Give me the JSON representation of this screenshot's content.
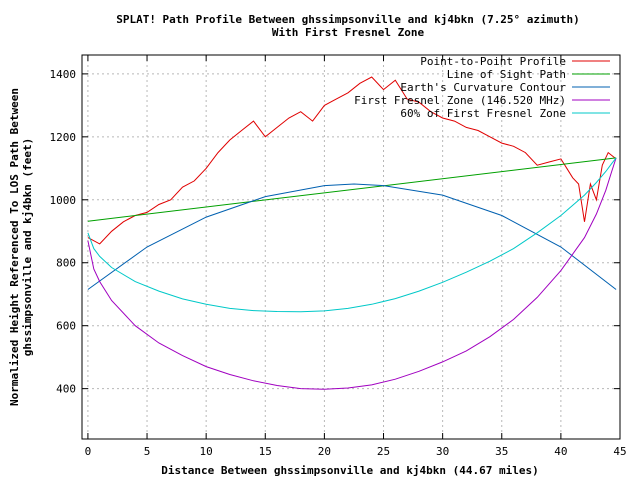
{
  "chart_data": {
    "type": "line",
    "title": "SPLAT! Path Profile Between ghssimpsonville and kj4bkn (7.25° azimuth)",
    "subtitle": "With First Fresnel Zone",
    "xlabel": "Distance Between ghssimpsonville and kj4bkn (44.67 miles)",
    "ylabel_line1": "Normalized Height Referenced To LOS Path Between",
    "ylabel_line2": "ghssimpsonville and kj4bkn (feet)",
    "xlim": [
      -0.5,
      45
    ],
    "ylim": [
      240,
      1460
    ],
    "xticks": [
      0,
      5,
      10,
      15,
      20,
      25,
      30,
      35,
      40,
      45
    ],
    "yticks": [
      400,
      600,
      800,
      1000,
      1200,
      1400
    ],
    "grid": true,
    "legend_position": "top-right",
    "series": [
      {
        "name": "Point-to-Point Profile",
        "color": "#e00000",
        "x": [
          0,
          1,
          2,
          3,
          4,
          5,
          6,
          7,
          8,
          9,
          10,
          11,
          12,
          13,
          14,
          15,
          16,
          17,
          18,
          19,
          20,
          21,
          22,
          23,
          24,
          25,
          26,
          27,
          28,
          29,
          30,
          31,
          32,
          33,
          34,
          35,
          36,
          37,
          38,
          39,
          40,
          40.5,
          41,
          41.5,
          42,
          42.5,
          43,
          43.5,
          44,
          44.67
        ],
        "y": [
          880,
          860,
          900,
          930,
          950,
          960,
          985,
          1000,
          1040,
          1060,
          1100,
          1150,
          1190,
          1220,
          1250,
          1200,
          1230,
          1260,
          1280,
          1250,
          1300,
          1320,
          1340,
          1370,
          1390,
          1350,
          1380,
          1320,
          1310,
          1280,
          1260,
          1250,
          1230,
          1220,
          1200,
          1180,
          1170,
          1150,
          1110,
          1120,
          1130,
          1100,
          1070,
          1050,
          930,
          1050,
          1000,
          1110,
          1150,
          1130
        ]
      },
      {
        "name": "Line of Sight Path",
        "color": "#00a000",
        "x": [
          0,
          44.67
        ],
        "y": [
          932,
          1133
        ]
      },
      {
        "name": "Earth's Curvature Contour",
        "color": "#0060b0",
        "x": [
          0,
          5,
          10,
          15,
          20,
          22.5,
          25,
          30,
          35,
          40,
          44.67
        ],
        "y": [
          715,
          850,
          945,
          1010,
          1045,
          1050,
          1045,
          1015,
          950,
          850,
          715
        ]
      },
      {
        "name": "First Fresnel Zone (146.520 MHz)",
        "color": "#a000c0",
        "x": [
          0,
          0.5,
          1,
          2,
          4,
          6,
          8,
          10,
          12,
          14,
          16,
          18,
          20,
          22,
          24,
          26,
          28,
          30,
          32,
          34,
          36,
          38,
          40,
          42,
          43,
          43.8,
          44.3,
          44.67
        ],
        "y": [
          870,
          780,
          740,
          680,
          600,
          545,
          505,
          470,
          445,
          425,
          410,
          400,
          398,
          402,
          412,
          430,
          455,
          485,
          520,
          565,
          620,
          690,
          775,
          880,
          955,
          1030,
          1090,
          1133
        ]
      },
      {
        "name": "60% of First Fresnel Zone",
        "color": "#00c8c8",
        "x": [
          0,
          0.5,
          1,
          2,
          4,
          6,
          8,
          10,
          12,
          14,
          16,
          18,
          20,
          22,
          24,
          26,
          28,
          30,
          32,
          34,
          36,
          38,
          40,
          42,
          43,
          43.8,
          44.3,
          44.67
        ],
        "y": [
          895,
          845,
          820,
          785,
          740,
          710,
          685,
          668,
          655,
          648,
          645,
          644,
          647,
          655,
          668,
          686,
          710,
          738,
          770,
          805,
          845,
          895,
          950,
          1015,
          1055,
          1090,
          1115,
          1133
        ]
      }
    ]
  }
}
